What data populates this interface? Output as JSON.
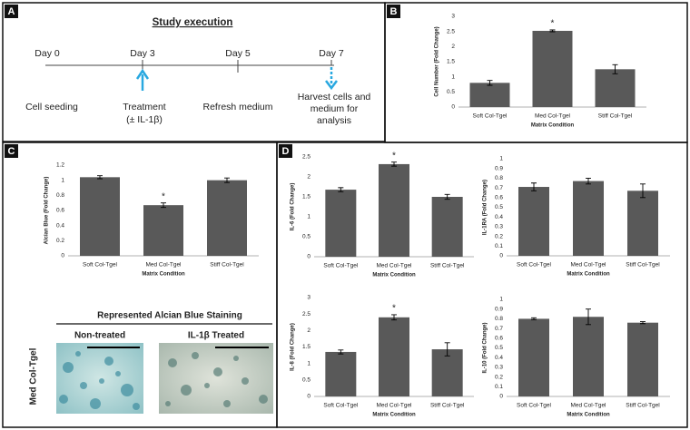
{
  "panel_labels": [
    "A",
    "B",
    "C",
    "D"
  ],
  "timeline": {
    "title": "Study execution",
    "days": [
      "Day 0",
      "Day 3",
      "Day 5",
      "Day 7"
    ],
    "events": [
      [
        "Cell seeding"
      ],
      [
        "Treatment",
        "(± IL-1β)"
      ],
      [
        "Refresh medium"
      ],
      [
        "Harvest cells and",
        "medium for",
        "analysis"
      ]
    ]
  },
  "staining": {
    "title": "Represented Alcian Blue Staining",
    "row_label": "Med Col-Tgel",
    "columns": [
      "Non-treated",
      "IL-1β Treated"
    ]
  },
  "chart_data": [
    {
      "type": "bar",
      "y_label": "Cell Number (Fold Change)",
      "x_label": "Matrix Condition",
      "categories": [
        "Soft Col-Tgel",
        "Med Col-Tgel",
        "Stiff Col-Tgel"
      ],
      "values": [
        0.8,
        2.52,
        1.25
      ],
      "errors": [
        0.08,
        0.03,
        0.15
      ],
      "color": "#595959",
      "ylim": [
        0,
        3
      ],
      "yticks": [
        0,
        0.5,
        1,
        1.5,
        2,
        2.5,
        3
      ],
      "annotations": [
        {
          "category": "Med Col-Tgel",
          "text": "*"
        }
      ]
    },
    {
      "type": "bar",
      "y_label": "Alcian Blue (Fold Change)",
      "x_label": "Matrix Condition",
      "categories": [
        "Soft Col-Tgel",
        "Med Col-Tgel",
        "Stiff Col-Tgel"
      ],
      "values": [
        1.04,
        0.67,
        1.0
      ],
      "errors": [
        0.02,
        0.03,
        0.03
      ],
      "color": "#595959",
      "ylim": [
        0,
        1.2
      ],
      "yticks": [
        0,
        0.2,
        0.4,
        0.6,
        0.8,
        1,
        1.2
      ],
      "annotations": [
        {
          "category": "Med Col-Tgel",
          "text": "*"
        }
      ]
    },
    {
      "type": "bar",
      "y_label": "IL-6 (Fold Change)",
      "x_label": "Matrix Condition",
      "categories": [
        "Soft Col-Tgel",
        "Med Col-Tgel",
        "Stiff Col-Tgel"
      ],
      "values": [
        1.68,
        2.32,
        1.5
      ],
      "errors": [
        0.05,
        0.05,
        0.06
      ],
      "color": "#595959",
      "ylim": [
        0,
        2.5
      ],
      "yticks": [
        0,
        0.5,
        1,
        1.5,
        2,
        2.5
      ],
      "annotations": [
        {
          "category": "Med Col-Tgel",
          "text": "*"
        }
      ]
    },
    {
      "type": "bar",
      "y_label": "IL-1RA (Fold Change)",
      "x_label": "Matrix Condition",
      "categories": [
        "Soft Col-Tgel",
        "Med Col-Tgel",
        "Stiff Col-Tgel"
      ],
      "values": [
        0.71,
        0.77,
        0.67
      ],
      "errors": [
        0.04,
        0.03,
        0.07
      ],
      "color": "#595959",
      "ylim": [
        0,
        1
      ],
      "yticks": [
        0,
        0.1,
        0.2,
        0.3,
        0.4,
        0.5,
        0.6,
        0.7,
        0.8,
        0.9,
        1
      ],
      "annotations": []
    },
    {
      "type": "bar",
      "y_label": "IL-8 (Fold Change)",
      "x_label": "Matrix Condition",
      "categories": [
        "Soft Col-Tgel",
        "Med Col-Tgel",
        "Stiff Col-Tgel"
      ],
      "values": [
        1.35,
        2.4,
        1.43
      ],
      "errors": [
        0.06,
        0.08,
        0.2
      ],
      "color": "#595959",
      "ylim": [
        0,
        3
      ],
      "yticks": [
        0,
        0.5,
        1,
        1.5,
        2,
        2.5,
        3
      ],
      "annotations": [
        {
          "category": "Med Col-Tgel",
          "text": "*"
        }
      ]
    },
    {
      "type": "bar",
      "y_label": "IL-10 (Fold Change)",
      "x_label": "Matrix Condition",
      "categories": [
        "Soft Col-Tgel",
        "Med Col-Tgel",
        "Stiff Col-Tgel"
      ],
      "values": [
        0.8,
        0.82,
        0.76
      ],
      "errors": [
        0.01,
        0.08,
        0.01
      ],
      "color": "#595959",
      "ylim": [
        0,
        1
      ],
      "yticks": [
        0,
        0.1,
        0.2,
        0.3,
        0.4,
        0.5,
        0.6,
        0.7,
        0.8,
        0.9,
        1
      ],
      "annotations": []
    }
  ]
}
